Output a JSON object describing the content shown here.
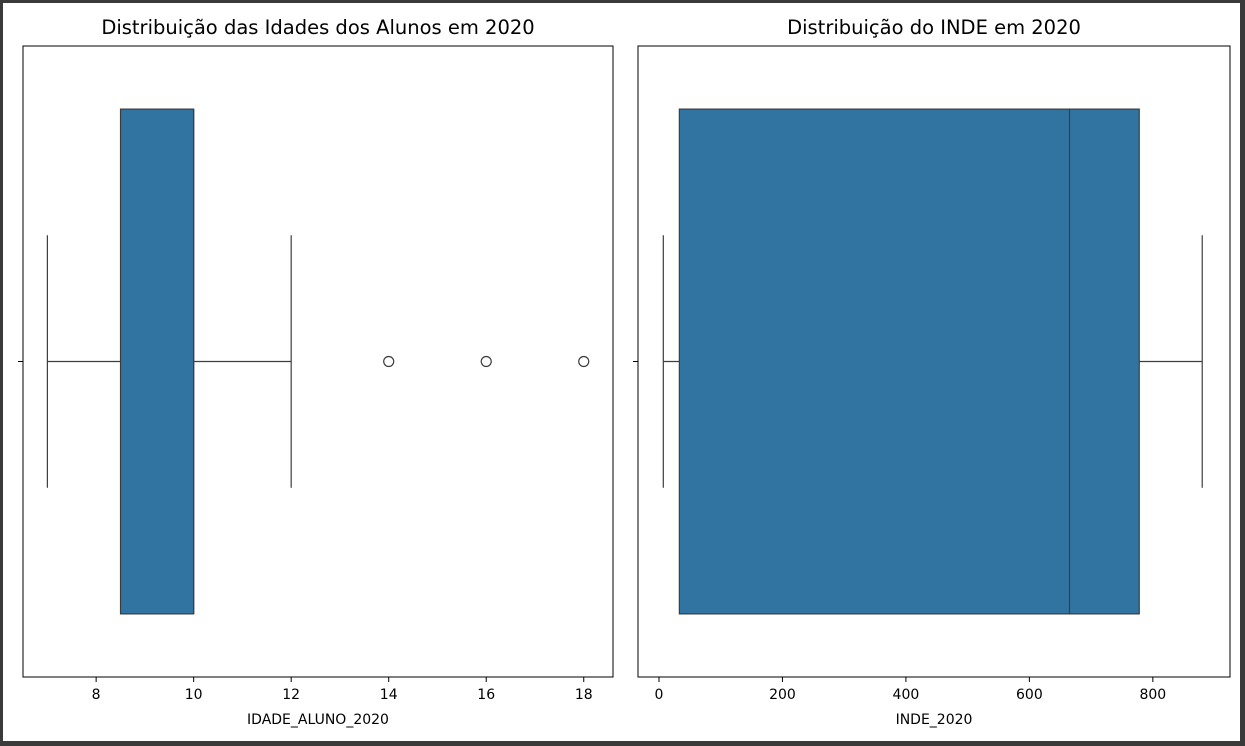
{
  "chart_data": [
    {
      "type": "boxplot",
      "orientation": "horizontal",
      "title": "Distribuição das Idades dos Alunos em 2020",
      "xlabel": "IDADE_ALUNO_2020",
      "ylabel": "",
      "xlim": [
        6.5,
        18.6
      ],
      "xticks": [
        8,
        10,
        12,
        14,
        16,
        18
      ],
      "box": {
        "whisker_low": 7,
        "q1": 8.5,
        "median": 10,
        "q3": 10,
        "whisker_high": 12
      },
      "outliers": [
        14,
        16,
        18
      ],
      "color": "#3274a1"
    },
    {
      "type": "boxplot",
      "orientation": "horizontal",
      "title": "Distribuição do INDE em 2020",
      "xlabel": "INDE_2020",
      "ylabel": "",
      "xlim": [
        -34,
        925
      ],
      "xticks": [
        0,
        200,
        400,
        600,
        800
      ],
      "box": {
        "whisker_low": 7,
        "q1": 33,
        "median": 665,
        "q3": 778,
        "whisker_high": 880
      },
      "outliers": [],
      "color": "#3274a1"
    }
  ]
}
